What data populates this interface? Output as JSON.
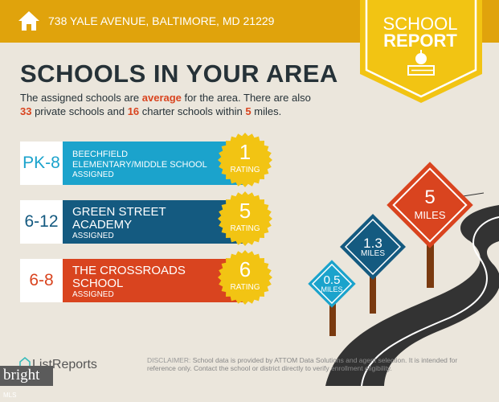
{
  "header": {
    "address": "738 YALE AVENUE, BALTIMORE, MD 21229",
    "home_icon": "home-icon",
    "badge": {
      "line1": "SCHOOL",
      "line2": "REPORT",
      "icon": "apple-on-book-icon"
    }
  },
  "title": "SCHOOLS IN YOUR AREA",
  "summary": {
    "p1": "The assigned schools are ",
    "rating_word": "average",
    "p2": " for the area. There are also ",
    "private_count": "33",
    "p3": " private schools and ",
    "charter_count": "16",
    "p4": " charter schools within ",
    "radius": "5",
    "p5": " miles."
  },
  "schools": [
    {
      "grades": "PK-8",
      "name_lines": [
        "BEECHFIELD",
        "ELEMENTARY/MIDDLE SCHOOL"
      ],
      "status": "ASSIGNED",
      "rating": "1",
      "rating_label": "RATING",
      "color": "#1ba3cc"
    },
    {
      "grades": "6-12",
      "name_lines": [
        "GREEN STREET",
        "ACADEMY"
      ],
      "status": "ASSIGNED",
      "rating": "5",
      "rating_label": "RATING",
      "color": "#145a80"
    },
    {
      "grades": "6-8",
      "name_lines": [
        "THE CROSSROADS",
        "SCHOOL"
      ],
      "status": "ASSIGNED",
      "rating": "6",
      "rating_label": "RATING",
      "color": "#d9441f"
    }
  ],
  "signs": [
    {
      "value": "0.5",
      "unit": "MILES",
      "color": "#1ba3cc"
    },
    {
      "value": "1.3",
      "unit": "MILES",
      "color": "#145a80"
    },
    {
      "value": "5",
      "unit": "MILES",
      "color": "#d9441f"
    }
  ],
  "colors": {
    "header": "#e0a30c",
    "badge": "#f2c413",
    "seal": "#f2c413",
    "background": "#ebe6dc",
    "title": "#263238"
  },
  "footer": {
    "logo": "ListReports",
    "mls": "bright",
    "mls_suffix": "MLS",
    "disclaimer_label": "DISCLAIMER:",
    "disclaimer": "School data is provided by ATTOM Data Solutions and agent selection. It is intended for reference only. Contact the school or district directly to verify enrollment eligibility."
  }
}
